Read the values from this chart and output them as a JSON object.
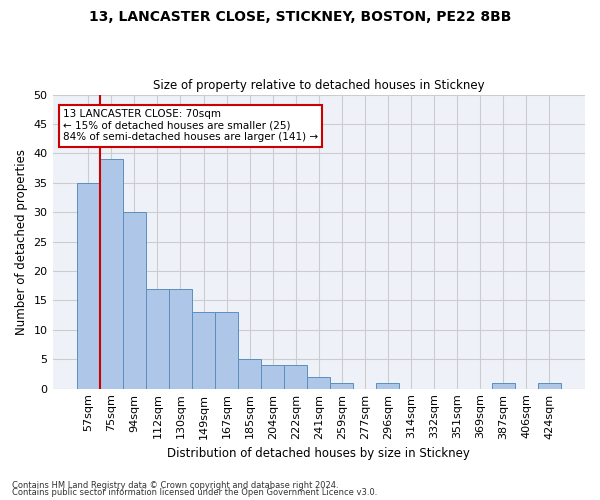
{
  "title1": "13, LANCASTER CLOSE, STICKNEY, BOSTON, PE22 8BB",
  "title2": "Size of property relative to detached houses in Stickney",
  "xlabel": "Distribution of detached houses by size in Stickney",
  "ylabel": "Number of detached properties",
  "categories": [
    "57sqm",
    "75sqm",
    "94sqm",
    "112sqm",
    "130sqm",
    "149sqm",
    "167sqm",
    "185sqm",
    "204sqm",
    "222sqm",
    "241sqm",
    "259sqm",
    "277sqm",
    "296sqm",
    "314sqm",
    "332sqm",
    "351sqm",
    "369sqm",
    "387sqm",
    "406sqm",
    "424sqm"
  ],
  "values": [
    35,
    39,
    30,
    17,
    17,
    13,
    13,
    5,
    4,
    4,
    2,
    1,
    0,
    1,
    0,
    0,
    0,
    0,
    1,
    0,
    1
  ],
  "bar_color": "#aec6e8",
  "bar_edge_color": "#5a8fc0",
  "highlight_color": "#cc0000",
  "annotation_line1": "13 LANCASTER CLOSE: 70sqm",
  "annotation_line2": "← 15% of detached houses are smaller (25)",
  "annotation_line3": "84% of semi-detached houses are larger (141) →",
  "annotation_box_color": "#ffffff",
  "annotation_box_edge": "#cc0000",
  "ylim": [
    0,
    50
  ],
  "yticks": [
    0,
    5,
    10,
    15,
    20,
    25,
    30,
    35,
    40,
    45,
    50
  ],
  "grid_color": "#cccccc",
  "bg_color": "#eef2f8",
  "footer1": "Contains HM Land Registry data © Crown copyright and database right 2024.",
  "footer2": "Contains public sector information licensed under the Open Government Licence v3.0."
}
